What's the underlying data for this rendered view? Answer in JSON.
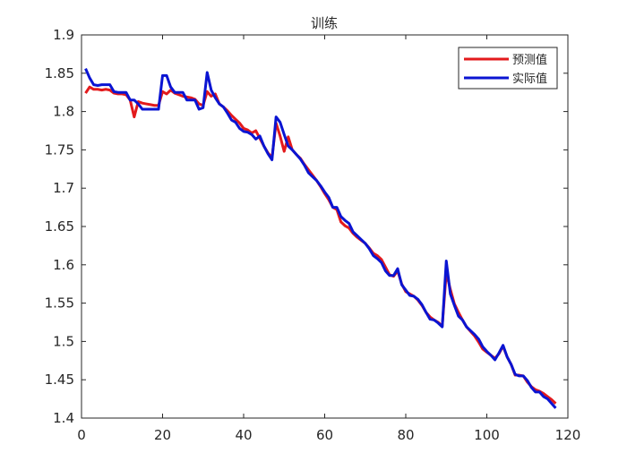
{
  "chart_data": {
    "type": "line",
    "title": "训练",
    "xlabel": "",
    "ylabel": "",
    "xlim": [
      0,
      120
    ],
    "ylim": [
      1.4,
      1.9
    ],
    "xticks": [
      0,
      20,
      40,
      60,
      80,
      100,
      120
    ],
    "yticks": [
      1.4,
      1.45,
      1.5,
      1.55,
      1.6,
      1.65,
      1.7,
      1.75,
      1.8,
      1.85,
      1.9
    ],
    "xtick_labels": [
      "0",
      "20",
      "40",
      "60",
      "80",
      "100",
      "120"
    ],
    "ytick_labels": [
      "1.4",
      "1.45",
      "1.5",
      "1.55",
      "1.6",
      "1.65",
      "1.7",
      "1.75",
      "1.8",
      "1.85",
      "1.9"
    ],
    "grid": false,
    "legend_position": "top-right",
    "x": [
      1,
      2,
      3,
      4,
      5,
      6,
      7,
      8,
      9,
      10,
      11,
      12,
      13,
      14,
      15,
      16,
      17,
      18,
      19,
      20,
      21,
      22,
      23,
      24,
      25,
      26,
      27,
      28,
      29,
      30,
      31,
      32,
      33,
      34,
      35,
      36,
      37,
      38,
      39,
      40,
      41,
      42,
      43,
      44,
      45,
      46,
      47,
      48,
      49,
      50,
      51,
      52,
      53,
      54,
      55,
      56,
      57,
      58,
      59,
      60,
      61,
      62,
      63,
      64,
      65,
      66,
      67,
      68,
      69,
      70,
      71,
      72,
      73,
      74,
      75,
      76,
      77,
      78,
      79,
      80,
      81,
      82,
      83,
      84,
      85,
      86,
      87,
      88,
      89,
      90,
      91,
      92,
      93,
      94,
      95,
      96,
      97,
      98,
      99,
      100,
      101,
      102,
      103,
      104,
      105,
      106,
      107,
      108,
      109,
      110,
      111,
      112,
      113,
      114,
      115,
      116,
      117
    ],
    "series": [
      {
        "name": "预测值",
        "color": "#e31a1c",
        "values": [
          1.824,
          1.832,
          1.829,
          1.829,
          1.828,
          1.829,
          1.828,
          1.824,
          1.823,
          1.823,
          1.822,
          1.815,
          1.793,
          1.813,
          1.811,
          1.81,
          1.809,
          1.808,
          1.808,
          1.826,
          1.823,
          1.828,
          1.824,
          1.822,
          1.82,
          1.819,
          1.818,
          1.816,
          1.81,
          1.808,
          1.826,
          1.82,
          1.823,
          1.81,
          1.806,
          1.801,
          1.795,
          1.79,
          1.785,
          1.778,
          1.776,
          1.772,
          1.775,
          1.765,
          1.755,
          1.746,
          1.74,
          1.785,
          1.768,
          1.748,
          1.767,
          1.75,
          1.744,
          1.739,
          1.731,
          1.724,
          1.717,
          1.71,
          1.702,
          1.693,
          1.685,
          1.675,
          1.672,
          1.656,
          1.651,
          1.648,
          1.641,
          1.636,
          1.632,
          1.628,
          1.622,
          1.615,
          1.612,
          1.607,
          1.597,
          1.587,
          1.585,
          1.592,
          1.575,
          1.565,
          1.562,
          1.559,
          1.554,
          1.547,
          1.538,
          1.532,
          1.528,
          1.525,
          1.52,
          1.59,
          1.568,
          1.549,
          1.538,
          1.528,
          1.519,
          1.513,
          1.507,
          1.499,
          1.49,
          1.486,
          1.482,
          1.478,
          1.484,
          1.494,
          1.48,
          1.47,
          1.456,
          1.456,
          1.455,
          1.447,
          1.441,
          1.437,
          1.435,
          1.432,
          1.428,
          1.424,
          1.419
        ]
      },
      {
        "name": "实际值",
        "color": "#0a14d2",
        "values": [
          1.856,
          1.844,
          1.835,
          1.834,
          1.835,
          1.835,
          1.835,
          1.826,
          1.825,
          1.825,
          1.825,
          1.815,
          1.815,
          1.81,
          1.803,
          1.803,
          1.803,
          1.803,
          1.803,
          1.847,
          1.847,
          1.832,
          1.825,
          1.825,
          1.825,
          1.815,
          1.815,
          1.815,
          1.803,
          1.805,
          1.851,
          1.828,
          1.818,
          1.81,
          1.806,
          1.798,
          1.789,
          1.786,
          1.778,
          1.774,
          1.773,
          1.77,
          1.764,
          1.768,
          1.755,
          1.745,
          1.737,
          1.793,
          1.786,
          1.77,
          1.755,
          1.75,
          1.744,
          1.738,
          1.73,
          1.72,
          1.715,
          1.71,
          1.703,
          1.695,
          1.688,
          1.675,
          1.675,
          1.663,
          1.658,
          1.654,
          1.643,
          1.638,
          1.633,
          1.628,
          1.621,
          1.612,
          1.608,
          1.603,
          1.592,
          1.586,
          1.586,
          1.595,
          1.574,
          1.567,
          1.56,
          1.559,
          1.555,
          1.548,
          1.538,
          1.529,
          1.528,
          1.524,
          1.519,
          1.605,
          1.562,
          1.547,
          1.533,
          1.528,
          1.519,
          1.514,
          1.509,
          1.503,
          1.493,
          1.487,
          1.482,
          1.476,
          1.485,
          1.495,
          1.48,
          1.47,
          1.457,
          1.455,
          1.455,
          1.449,
          1.44,
          1.434,
          1.434,
          1.428,
          1.425,
          1.419,
          1.413
        ]
      }
    ]
  }
}
